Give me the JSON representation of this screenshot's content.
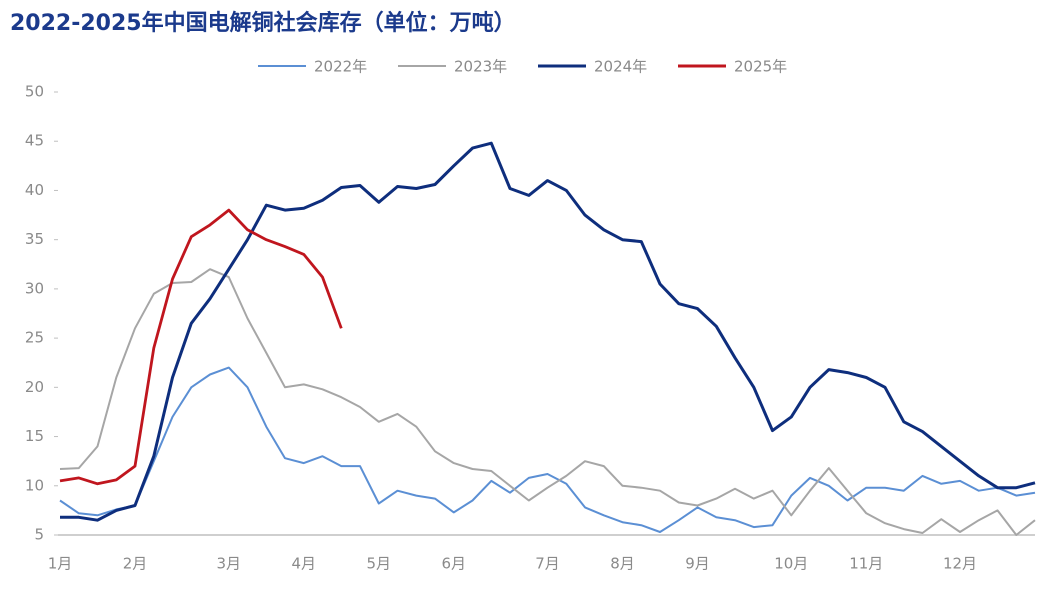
{
  "chart_data": {
    "type": "line",
    "title": "2022-2025年中国电解铜社会库存（单位：万吨）",
    "categories": [
      "1月",
      null,
      null,
      null,
      "2月",
      null,
      null,
      null,
      null,
      "3月",
      null,
      null,
      null,
      "4月",
      null,
      null,
      null,
      "5月",
      null,
      null,
      null,
      "6月",
      null,
      null,
      null,
      null,
      "7月",
      null,
      null,
      null,
      "8月",
      null,
      null,
      null,
      "9月",
      null,
      null,
      null,
      null,
      "10月",
      null,
      null,
      null,
      "11月",
      null,
      null,
      null,
      null,
      "12月",
      null,
      null,
      null,
      null
    ],
    "series": [
      {
        "name": "2022年",
        "color": "#5b8fd4",
        "values": [
          8.5,
          7.2,
          7,
          7.6,
          8,
          12.5,
          17,
          20,
          21.3,
          22,
          20,
          16,
          12.8,
          12.3,
          13,
          12,
          12,
          8.2,
          9.5,
          9,
          8.7,
          7.3,
          8.5,
          10.5,
          9.3,
          10.8,
          11.2,
          10.2,
          7.8,
          7,
          6.3,
          6,
          5.3,
          6.5,
          7.8,
          6.8,
          6.5,
          5.8,
          6,
          9,
          10.8,
          10,
          8.5,
          9.8,
          9.8,
          9.5,
          11,
          10.2,
          10.5,
          9.5,
          9.8,
          9,
          9.3
        ]
      },
      {
        "name": "2023年",
        "color": "#a6a6a6",
        "values": [
          11.7,
          11.8,
          14,
          21,
          26,
          29.5,
          30.6,
          30.7,
          32,
          31.2,
          27,
          23.5,
          20,
          20.3,
          19.8,
          19,
          18,
          16.5,
          17.3,
          16,
          13.5,
          12.3,
          11.7,
          11.5,
          10,
          8.5,
          9.8,
          11,
          12.5,
          12,
          10,
          9.8,
          9.5,
          8.3,
          8,
          8.7,
          9.7,
          8.7,
          9.5,
          7,
          9.5,
          11.8,
          9.5,
          7.2,
          6.2,
          5.6,
          5.2,
          6.6,
          5.3,
          6.5,
          7.5,
          5,
          6.5
        ]
      },
      {
        "name": "2024年",
        "color": "#0e2e7d",
        "values": [
          6.8,
          6.8,
          6.5,
          7.5,
          8,
          13,
          21,
          26.5,
          29,
          32,
          35,
          38.5,
          38,
          38.2,
          39,
          40.3,
          40.5,
          38.8,
          40.4,
          40.2,
          40.6,
          42.5,
          44.3,
          44.8,
          40.2,
          39.5,
          41,
          40,
          37.5,
          36,
          35,
          34.8,
          30.5,
          28.5,
          28,
          26.2,
          23,
          20,
          15.6,
          17,
          20,
          21.8,
          21.5,
          21,
          20,
          16.5,
          15.5,
          14,
          12.5,
          11,
          9.8,
          9.8,
          10.3
        ]
      },
      {
        "name": "2025年",
        "color": "#c0161e",
        "values": [
          10.5,
          10.8,
          10.2,
          10.6,
          12,
          24,
          31,
          35.3,
          36.5,
          38,
          36,
          35,
          34.3,
          33.5,
          31.2,
          26,
          null,
          null,
          null,
          null,
          null,
          null,
          null,
          null,
          null,
          null,
          null,
          null,
          null,
          null,
          null,
          null,
          null,
          null,
          null,
          null,
          null,
          null,
          null,
          null,
          null,
          null,
          null,
          null,
          null,
          null,
          null,
          null,
          null,
          null,
          null,
          null,
          null
        ]
      }
    ],
    "ylim": [
      5,
      50
    ],
    "yticks": [
      5,
      10,
      15,
      20,
      25,
      30,
      35,
      40,
      45,
      50
    ],
    "legend": "top"
  }
}
